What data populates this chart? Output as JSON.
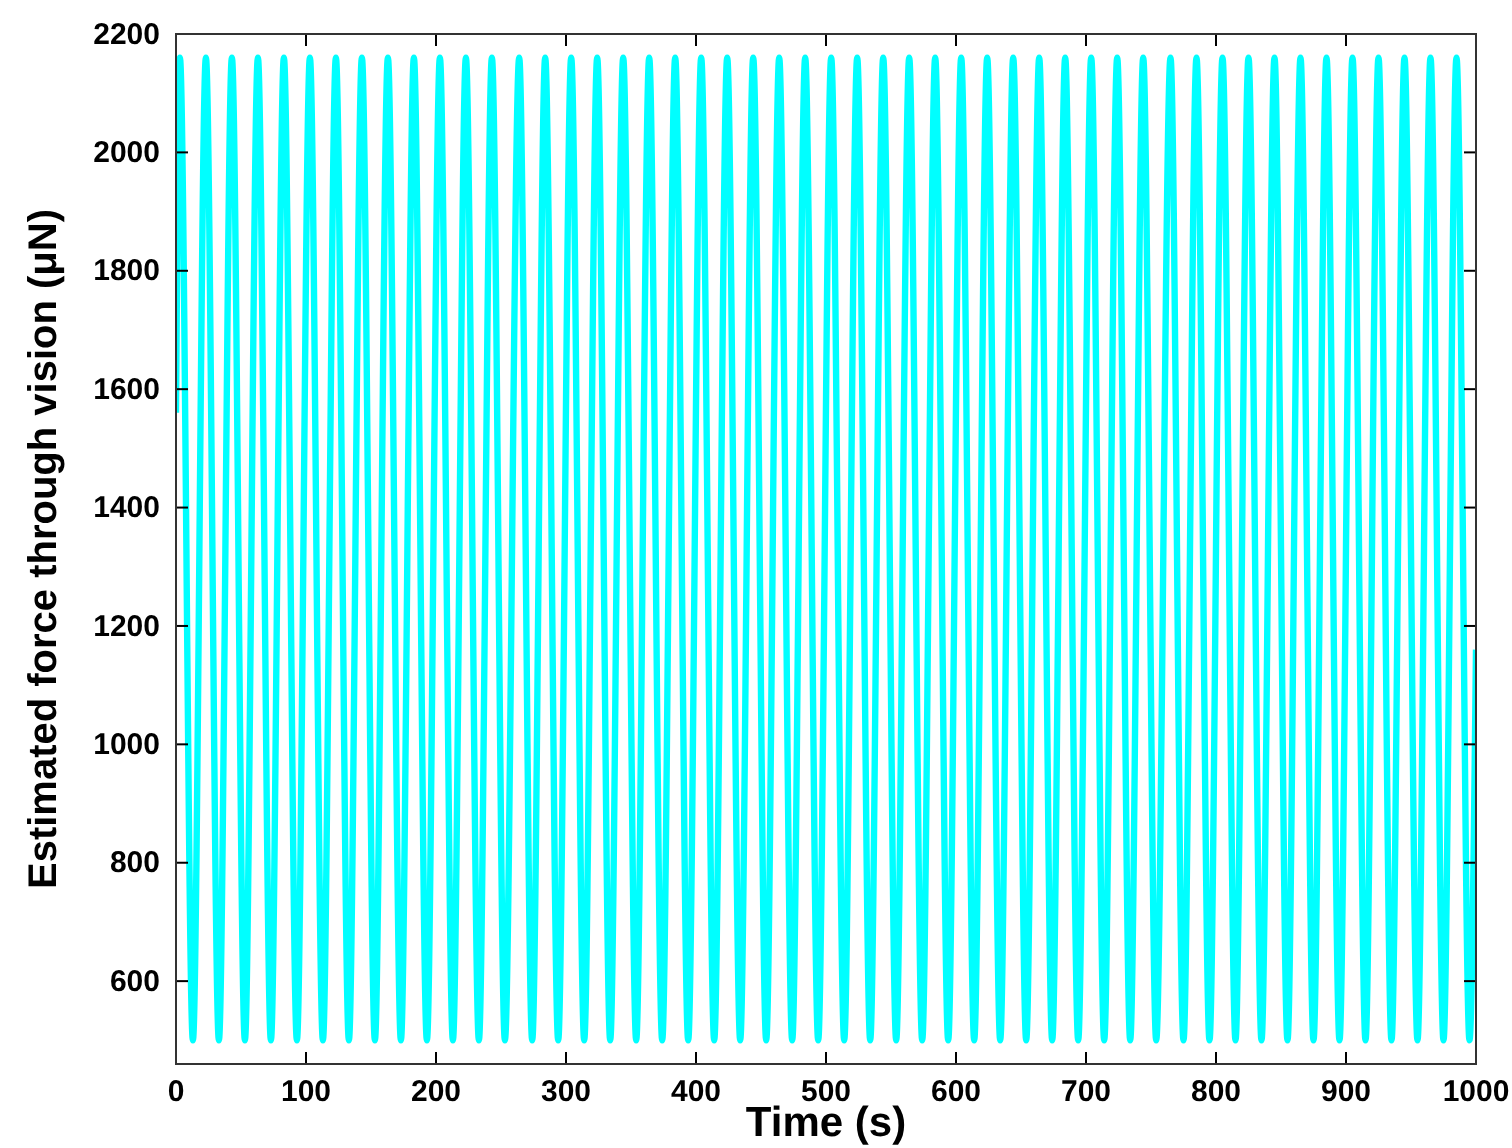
{
  "chart_data": {
    "type": "line",
    "xlabel": "Time (s)",
    "ylabel": "Estimated force through vision (μN)",
    "xlim": [
      0,
      1000
    ],
    "ylim": [
      460,
      2200
    ],
    "xticks": [
      0,
      100,
      200,
      300,
      400,
      500,
      600,
      700,
      800,
      900,
      1000
    ],
    "yticks": [
      600,
      800,
      1000,
      1200,
      1400,
      1600,
      1800,
      2000,
      2200
    ],
    "grid": false,
    "marker": "none",
    "line_style": "solid",
    "series": [
      {
        "color": "#00ffff",
        "x": [
          0,
          3,
          13,
          23,
          33,
          43,
          53,
          63,
          73,
          83,
          93,
          103,
          113,
          123,
          133,
          143,
          153,
          163,
          173,
          183,
          193,
          203,
          213,
          223,
          233,
          243,
          253,
          264,
          274,
          284,
          294,
          304,
          314,
          324,
          334,
          344,
          354,
          364,
          374,
          384,
          394,
          404,
          414,
          424,
          434,
          444,
          454,
          464,
          474,
          484,
          494,
          504,
          514,
          524,
          534,
          544,
          554,
          564,
          574,
          584,
          594,
          604,
          614,
          624,
          634,
          644,
          654,
          664,
          674,
          684,
          694,
          704,
          714,
          724,
          734,
          744,
          754,
          765,
          775,
          785,
          795,
          805,
          815,
          825,
          835,
          845,
          855,
          865,
          875,
          885,
          895,
          905,
          915,
          925,
          935,
          945,
          955,
          965,
          975,
          985,
          995,
          1000
        ],
        "values": [
          1560,
          2160,
          500,
          2160,
          500,
          2160,
          500,
          2160,
          500,
          2160,
          500,
          2160,
          500,
          2160,
          500,
          2160,
          500,
          2160,
          500,
          2160,
          500,
          2160,
          500,
          2160,
          500,
          2160,
          500,
          2160,
          500,
          2160,
          500,
          2160,
          500,
          2160,
          500,
          2160,
          500,
          2160,
          500,
          2160,
          500,
          2160,
          500,
          2160,
          500,
          2160,
          500,
          2160,
          500,
          2160,
          500,
          2160,
          500,
          2160,
          500,
          2160,
          500,
          2160,
          500,
          2160,
          500,
          2160,
          500,
          2160,
          500,
          2160,
          500,
          2160,
          500,
          2160,
          500,
          2160,
          500,
          2160,
          500,
          2160,
          500,
          2160,
          500,
          2160,
          500,
          2160,
          500,
          2160,
          500,
          2160,
          500,
          2160,
          500,
          2160,
          500,
          2160,
          500,
          2160,
          500,
          2160,
          500,
          2160,
          500,
          2160,
          500,
          1160
        ]
      }
    ]
  }
}
